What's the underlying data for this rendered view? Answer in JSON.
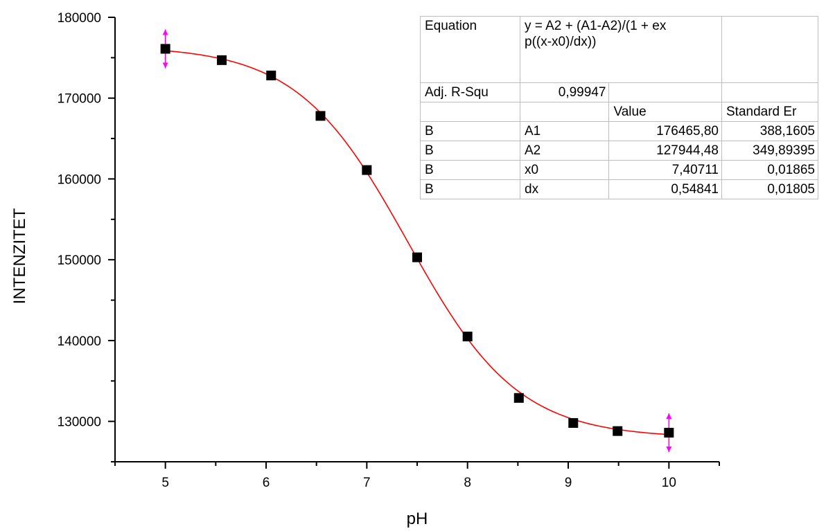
{
  "chart_data": {
    "type": "scatter",
    "xlabel": "pH",
    "ylabel": "INTENZITET",
    "xlim": [
      4.5,
      10.5
    ],
    "ylim": [
      125000,
      180000
    ],
    "x_ticks": [
      5,
      6,
      7,
      8,
      9,
      10
    ],
    "y_ticks": [
      130000,
      140000,
      150000,
      160000,
      170000,
      180000
    ],
    "x_tick_labels": [
      "5",
      "6",
      "7",
      "8",
      "9",
      "10"
    ],
    "y_tick_labels": [
      "130000",
      "140000",
      "150000",
      "160000",
      "170000",
      "180000"
    ],
    "grid": false,
    "points": [
      {
        "x": 5.0,
        "y": 176100
      },
      {
        "x": 5.56,
        "y": 174700
      },
      {
        "x": 6.05,
        "y": 172800
      },
      {
        "x": 6.54,
        "y": 167800
      },
      {
        "x": 7.0,
        "y": 161100
      },
      {
        "x": 7.5,
        "y": 150300
      },
      {
        "x": 8.0,
        "y": 140500
      },
      {
        "x": 8.51,
        "y": 132900
      },
      {
        "x": 9.05,
        "y": 129800
      },
      {
        "x": 9.49,
        "y": 128800
      },
      {
        "x": 10.0,
        "y": 128600
      }
    ],
    "error_bars": [
      {
        "x": 5.0,
        "y": 176100,
        "err": 2400
      },
      {
        "x": 10.0,
        "y": 128600,
        "err": 2400
      }
    ],
    "fit": {
      "model": "boltzmann",
      "A1": 176465.8,
      "A2": 127944.48,
      "x0": 7.40711,
      "dx": 0.54841,
      "x_range": [
        5.0,
        10.0
      ]
    },
    "colors": {
      "points": "#000000",
      "fit_line": "#ff0000",
      "error_bars": "#ff00ff"
    }
  },
  "fit_table": {
    "equation_label": "Equation",
    "equation_line1": "y = A2 + (A1-A2)/(1 + ex",
    "equation_line2": "p((x-x0)/dx))",
    "adj_r_label": "Adj. R-Squ",
    "adj_r_value": "0,99947",
    "value_header": "Value",
    "std_err_header": "Standard Er",
    "rows": [
      {
        "group": "B",
        "param": "A1",
        "value": "176465,80",
        "std_err": "388,1605"
      },
      {
        "group": "B",
        "param": "A2",
        "value": "127944,48",
        "std_err": "349,89395"
      },
      {
        "group": "B",
        "param": "x0",
        "value": "7,40711",
        "std_err": "0,01865"
      },
      {
        "group": "B",
        "param": "dx",
        "value": "0,54841",
        "std_err": "0,01805"
      }
    ]
  }
}
